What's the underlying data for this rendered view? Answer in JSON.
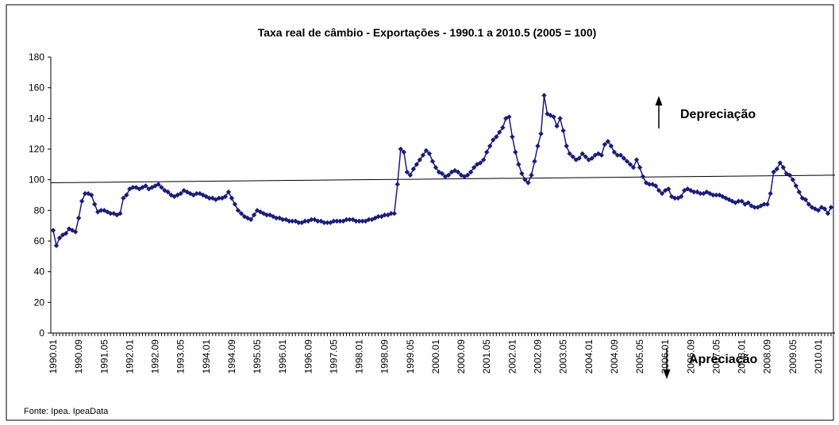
{
  "chart_data": {
    "type": "line",
    "title": "Taxa real de câmbio - Exportações - 1990.1 a 2010.5 (2005 = 100)",
    "source": "Fonte: Ipea. IpeaData",
    "categories": [
      "1990.01",
      null,
      null,
      null,
      null,
      null,
      null,
      null,
      "1990.09",
      null,
      null,
      null,
      null,
      null,
      null,
      null,
      "1991.05",
      null,
      null,
      null,
      null,
      null,
      null,
      null,
      "1992.01",
      null,
      null,
      null,
      null,
      null,
      null,
      null,
      "1992.09",
      null,
      null,
      null,
      null,
      null,
      null,
      null,
      "1993.05",
      null,
      null,
      null,
      null,
      null,
      null,
      null,
      "1994.01",
      null,
      null,
      null,
      null,
      null,
      null,
      null,
      "1994.09",
      null,
      null,
      null,
      null,
      null,
      null,
      null,
      "1995.05",
      null,
      null,
      null,
      null,
      null,
      null,
      null,
      "1996.01",
      null,
      null,
      null,
      null,
      null,
      null,
      null,
      "1996.09",
      null,
      null,
      null,
      null,
      null,
      null,
      null,
      "1997.05",
      null,
      null,
      null,
      null,
      null,
      null,
      null,
      "1998.01",
      null,
      null,
      null,
      null,
      null,
      null,
      null,
      "1998.09",
      null,
      null,
      null,
      null,
      null,
      null,
      null,
      "1999.05",
      null,
      null,
      null,
      null,
      null,
      null,
      null,
      "2000.01",
      null,
      null,
      null,
      null,
      null,
      null,
      null,
      "2000.09",
      null,
      null,
      null,
      null,
      null,
      null,
      null,
      "2001.05",
      null,
      null,
      null,
      null,
      null,
      null,
      null,
      "2002.01",
      null,
      null,
      null,
      null,
      null,
      null,
      null,
      "2002.09",
      null,
      null,
      null,
      null,
      null,
      null,
      null,
      "2003.05",
      null,
      null,
      null,
      null,
      null,
      null,
      null,
      "2004.01",
      null,
      null,
      null,
      null,
      null,
      null,
      null,
      "2004.09",
      null,
      null,
      null,
      null,
      null,
      null,
      null,
      "2005.05",
      null,
      null,
      null,
      null,
      null,
      null,
      null,
      "2006.01",
      null,
      null,
      null,
      null,
      null,
      null,
      null,
      "2006.09",
      null,
      null,
      null,
      null,
      null,
      null,
      null,
      "2007.05",
      null,
      null,
      null,
      null,
      null,
      null,
      null,
      "2008.01",
      null,
      null,
      null,
      null,
      null,
      null,
      null,
      "2008.09",
      null,
      null,
      null,
      null,
      null,
      null,
      null,
      "2009.05",
      null,
      null,
      null,
      null,
      null,
      null,
      null,
      "2010.01",
      null,
      null,
      null,
      null
    ],
    "values": [
      67,
      57,
      62,
      64,
      65,
      68,
      67,
      66,
      75,
      86,
      91,
      91,
      90,
      84,
      79,
      80,
      80,
      79,
      78,
      78,
      77,
      78,
      88,
      90,
      94,
      95,
      95,
      94,
      95,
      96,
      94,
      95,
      96,
      97,
      95,
      93,
      92,
      90,
      89,
      90,
      91,
      93,
      92,
      91,
      90,
      91,
      91,
      90,
      89,
      88,
      88,
      87,
      88,
      88,
      89,
      92,
      88,
      84,
      80,
      78,
      76,
      75,
      74,
      77,
      80,
      79,
      78,
      77,
      77,
      76,
      75,
      75,
      74,
      74,
      73,
      73,
      73,
      72,
      72,
      73,
      73,
      74,
      74,
      73,
      73,
      72,
      72,
      72,
      73,
      73,
      73,
      73,
      74,
      74,
      74,
      73,
      73,
      73,
      73,
      74,
      74,
      75,
      76,
      76,
      77,
      77,
      78,
      78,
      97,
      120,
      118,
      105,
      103,
      107,
      110,
      113,
      116,
      119,
      117,
      112,
      108,
      105,
      104,
      102,
      103,
      105,
      106,
      105,
      103,
      102,
      103,
      105,
      108,
      110,
      111,
      113,
      118,
      122,
      126,
      128,
      131,
      134,
      140,
      141,
      128,
      118,
      110,
      104,
      100,
      98,
      103,
      112,
      122,
      130,
      155,
      143,
      142,
      141,
      135,
      140,
      132,
      122,
      117,
      115,
      113,
      114,
      117,
      115,
      113,
      114,
      116,
      117,
      116,
      123,
      125,
      122,
      118,
      116,
      116,
      114,
      112,
      110,
      108,
      113,
      108,
      102,
      98,
      97,
      97,
      96,
      93,
      91,
      93,
      94,
      89,
      88,
      88,
      89,
      93,
      94,
      93,
      92,
      92,
      91,
      91,
      92,
      91,
      90,
      90,
      90,
      89,
      88,
      87,
      86,
      85,
      86,
      86,
      84,
      85,
      83,
      82,
      82,
      83,
      84,
      84,
      91,
      105,
      107,
      111,
      108,
      104,
      103,
      100,
      96,
      92,
      88,
      87,
      84,
      82,
      81,
      80,
      82,
      81,
      78,
      82
    ],
    "color": "#1c1c78",
    "reference_line": {
      "values": [
        98,
        103
      ],
      "color": "#000000"
    },
    "ylim": [
      0,
      180
    ],
    "yticks": [
      0,
      20,
      40,
      60,
      80,
      100,
      120,
      140,
      160,
      180
    ],
    "annotations": [
      {
        "text": "Depreciação",
        "direction": "up"
      },
      {
        "text": "Apreciação",
        "direction": "down"
      }
    ]
  }
}
